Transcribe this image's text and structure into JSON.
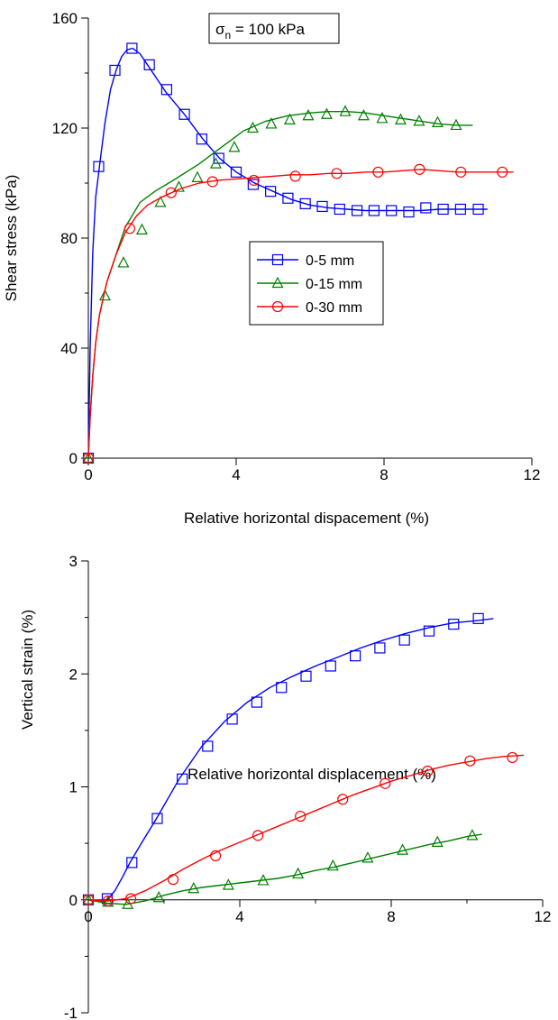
{
  "chart_data": [
    {
      "type": "line",
      "annotation": {
        "sigma": "σ",
        "sub": "n",
        "rest": " = 100 kPa"
      },
      "xlabel": "Relative horizontal dispacement (%)",
      "ylabel": "Shear stress (kPa)",
      "xlim": [
        0,
        12
      ],
      "ylim": [
        0,
        160
      ],
      "xticks": [
        0,
        4,
        8,
        12
      ],
      "yticks": [
        0,
        40,
        80,
        120,
        160
      ],
      "legend_position": "center-right",
      "series": [
        {
          "name": "0-5 mm",
          "color": "#0000ff",
          "marker": "square",
          "x": [
            0,
            0.05,
            0.12,
            0.2,
            0.3,
            0.45,
            0.6,
            0.75,
            0.9,
            1.05,
            1.2,
            1.4,
            1.6,
            1.85,
            2.1,
            2.6,
            3.1,
            3.55,
            4.0,
            4.5,
            5.0,
            5.5,
            6.0,
            6.5,
            7.0,
            7.5,
            8.0,
            8.5,
            9.0,
            9.5,
            10.0,
            10.5,
            10.8
          ],
          "y": [
            0,
            40,
            75,
            95,
            106,
            122,
            134,
            141,
            146,
            148.5,
            149,
            147,
            143,
            138,
            133,
            125,
            116,
            109,
            104,
            100,
            97,
            94,
            92,
            91,
            90.5,
            90,
            90,
            90,
            90,
            90.5,
            90.5,
            90.5,
            90.5
          ],
          "marker_x": [
            0,
            0.28,
            0.72,
            1.18,
            1.65,
            2.12,
            2.6,
            3.07,
            3.53,
            4.0,
            4.46,
            4.93,
            5.4,
            5.87,
            6.33,
            6.8,
            7.27,
            7.73,
            8.2,
            8.67,
            9.13,
            9.6,
            10.07,
            10.55
          ],
          "marker_y": [
            0,
            106,
            141,
            149,
            143,
            134,
            125,
            116,
            109,
            104,
            99.5,
            97,
            94.5,
            92.5,
            91.5,
            90.5,
            90,
            90,
            90,
            89.5,
            91,
            90.5,
            90.5,
            90.5
          ]
        },
        {
          "name": "0-15 mm",
          "color": "#008000",
          "marker": "triangle",
          "x": [
            0,
            0.05,
            0.12,
            0.2,
            0.3,
            0.5,
            0.7,
            1.0,
            1.4,
            1.8,
            2.3,
            3.0,
            3.6,
            4.2,
            4.8,
            5.4,
            6.0,
            6.5,
            7.0,
            7.5,
            8.0,
            8.5,
            9.0,
            9.5,
            10.0,
            10.4
          ],
          "y": [
            0,
            15,
            30,
            42,
            52,
            64,
            72,
            84,
            93,
            97,
            101,
            107,
            113,
            119,
            122.5,
            124.5,
            125.5,
            126,
            126,
            125.5,
            124.5,
            123.5,
            122.5,
            121.5,
            121,
            121
          ],
          "marker_x": [
            0,
            0.45,
            0.95,
            1.45,
            1.95,
            2.45,
            2.95,
            3.45,
            3.95,
            4.45,
            4.95,
            5.45,
            5.95,
            6.45,
            6.95,
            7.45,
            7.95,
            8.45,
            8.95,
            9.45,
            9.95
          ],
          "marker_y": [
            0,
            59,
            71,
            83,
            93,
            98.5,
            102,
            107,
            113,
            120,
            121.5,
            123,
            124.5,
            125,
            126,
            124.5,
            123.5,
            123,
            122.5,
            122,
            121
          ]
        },
        {
          "name": "0-30 mm",
          "color": "#ff0000",
          "marker": "circle",
          "x": [
            0,
            0.05,
            0.12,
            0.2,
            0.3,
            0.5,
            0.75,
            1.0,
            1.3,
            1.6,
            2.0,
            2.5,
            3.0,
            3.5,
            4.0,
            4.5,
            5.0,
            5.5,
            6.0,
            6.5,
            7.0,
            7.5,
            8.0,
            8.5,
            9.0,
            9.5,
            10.0,
            10.5,
            11.0,
            11.5
          ],
          "y": [
            0,
            15,
            30,
            42,
            52,
            64,
            74,
            82,
            88,
            92,
            95,
            98,
            100,
            101,
            101.5,
            102,
            102.5,
            103,
            103,
            103.5,
            103.5,
            104,
            104,
            104.5,
            105,
            104.5,
            104,
            104,
            104,
            104
          ],
          "marker_x": [
            0,
            1.12,
            2.24,
            3.36,
            4.48,
            5.6,
            6.72,
            7.84,
            8.96,
            10.08,
            11.2
          ],
          "marker_y": [
            0,
            83.5,
            96.5,
            100.5,
            101,
            102.5,
            103.5,
            104,
            105,
            104,
            104
          ]
        }
      ]
    },
    {
      "type": "line",
      "xlabel": "Relative horizontal displacement (%)",
      "ylabel": "Vertical strain (%)",
      "xlim": [
        0,
        12
      ],
      "ylim": [
        -1,
        3
      ],
      "xticks": [
        0,
        4,
        8,
        12
      ],
      "yticks": [
        -1,
        0,
        1,
        2,
        3
      ],
      "series": [
        {
          "name": "0-5 mm",
          "color": "#0000ff",
          "marker": "square",
          "x": [
            0,
            0.2,
            0.4,
            0.5,
            0.7,
            0.9,
            1.1,
            1.4,
            1.8,
            2.4,
            3.0,
            3.6,
            4.2,
            4.8,
            5.4,
            6.0,
            6.6,
            7.2,
            7.8,
            8.4,
            9.0,
            9.6,
            10.2,
            10.7
          ],
          "y": [
            0,
            -0.01,
            -0.02,
            0.0,
            0.08,
            0.2,
            0.33,
            0.5,
            0.72,
            1.07,
            1.36,
            1.58,
            1.75,
            1.88,
            1.98,
            2.07,
            2.15,
            2.23,
            2.3,
            2.36,
            2.41,
            2.45,
            2.47,
            2.49
          ],
          "marker_x": [
            0,
            0.5,
            1.15,
            1.82,
            2.48,
            3.15,
            3.8,
            4.45,
            5.1,
            5.75,
            6.4,
            7.05,
            7.7,
            8.35,
            9.0,
            9.65,
            10.3
          ],
          "marker_y": [
            0,
            0.01,
            0.33,
            0.72,
            1.07,
            1.36,
            1.6,
            1.75,
            1.88,
            1.98,
            2.07,
            2.16,
            2.23,
            2.3,
            2.38,
            2.44,
            2.49
          ]
        },
        {
          "name": "0-15 mm",
          "color": "#008000",
          "marker": "triangle",
          "x": [
            0,
            0.5,
            1.0,
            1.5,
            2.0,
            2.5,
            3.0,
            3.5,
            4.0,
            4.5,
            5.0,
            5.5,
            6.0,
            6.5,
            7.0,
            7.5,
            8.0,
            8.5,
            9.0,
            9.5,
            10.0,
            10.4
          ],
          "y": [
            0,
            -0.03,
            -0.04,
            -0.01,
            0.04,
            0.08,
            0.11,
            0.13,
            0.15,
            0.17,
            0.19,
            0.22,
            0.26,
            0.29,
            0.33,
            0.37,
            0.41,
            0.45,
            0.49,
            0.52,
            0.56,
            0.58
          ],
          "marker_x": [
            0,
            0.52,
            1.04,
            1.86,
            2.78,
            3.7,
            4.62,
            5.54,
            6.46,
            7.38,
            8.3,
            9.22,
            10.14
          ],
          "marker_y": [
            0,
            -0.02,
            -0.04,
            0.02,
            0.1,
            0.13,
            0.17,
            0.23,
            0.3,
            0.37,
            0.44,
            0.51,
            0.57
          ]
        },
        {
          "name": "0-30 mm",
          "color": "#ff0000",
          "marker": "circle",
          "x": [
            0,
            0.5,
            1.0,
            1.5,
            2.0,
            2.5,
            3.0,
            3.5,
            4.0,
            4.5,
            5.0,
            5.5,
            6.0,
            6.5,
            7.0,
            7.5,
            8.0,
            8.5,
            9.0,
            9.5,
            10.0,
            10.5,
            11.0,
            11.5
          ],
          "y": [
            0,
            -0.01,
            0.01,
            0.08,
            0.17,
            0.27,
            0.36,
            0.44,
            0.51,
            0.58,
            0.65,
            0.72,
            0.79,
            0.86,
            0.93,
            0.99,
            1.05,
            1.1,
            1.15,
            1.19,
            1.22,
            1.25,
            1.27,
            1.28
          ],
          "marker_x": [
            0,
            0.52,
            1.12,
            2.24,
            3.36,
            4.48,
            5.6,
            6.72,
            7.84,
            8.96,
            10.08,
            11.2
          ],
          "marker_y": [
            0,
            -0.01,
            0.01,
            0.18,
            0.39,
            0.57,
            0.74,
            0.89,
            1.03,
            1.14,
            1.23,
            1.26
          ]
        }
      ]
    }
  ]
}
